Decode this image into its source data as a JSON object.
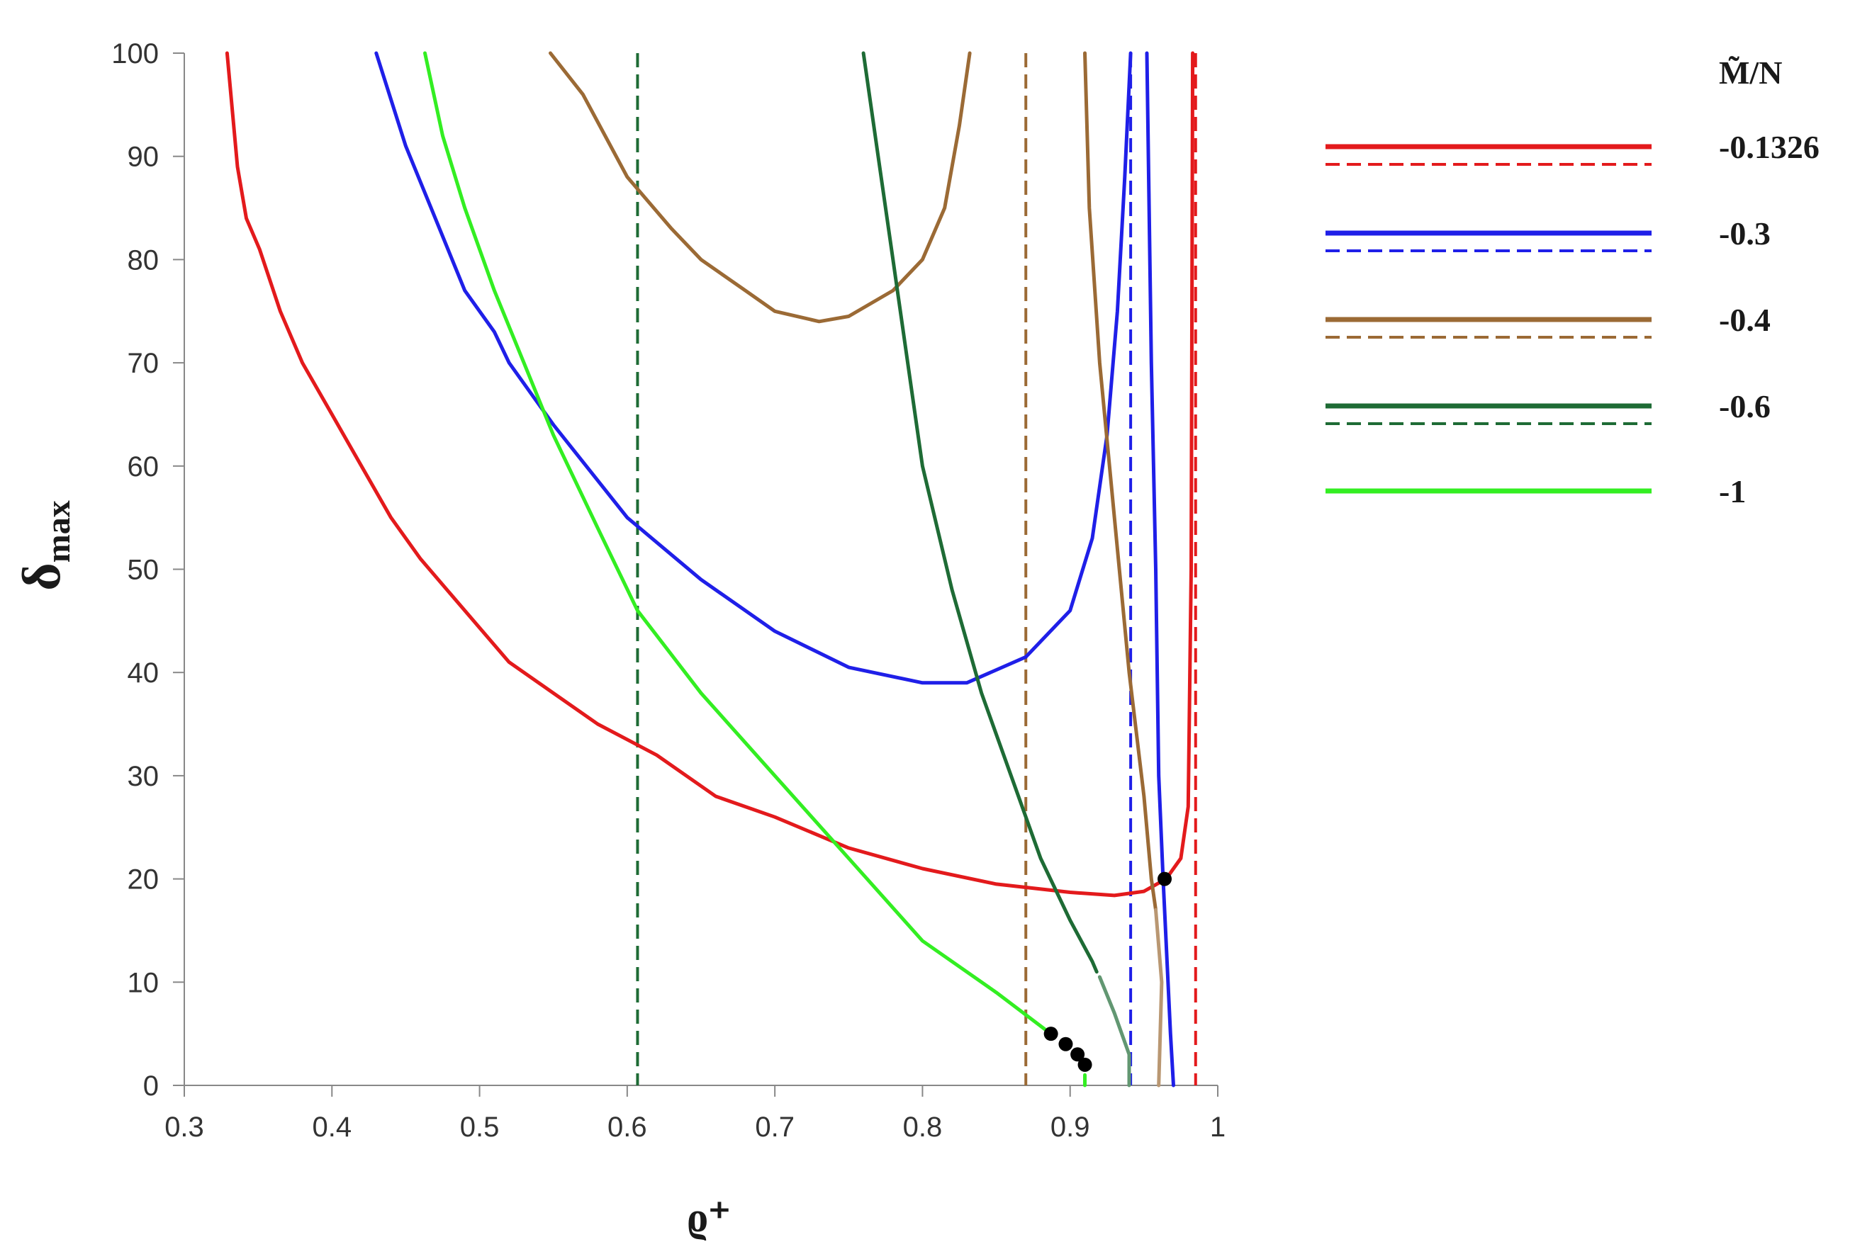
{
  "chart_data": {
    "type": "line",
    "xlabel": "ϱ⁺",
    "ylabel": "δ",
    "ylabel_sub": "max",
    "xlim": [
      0.3,
      1.0
    ],
    "ylim": [
      0,
      100
    ],
    "x_ticks": [
      "0.3",
      "0.4",
      "0.5",
      "0.6",
      "0.7",
      "0.8",
      "0.9",
      "1"
    ],
    "y_ticks": [
      "0",
      "10",
      "20",
      "30",
      "40",
      "50",
      "60",
      "70",
      "80",
      "90",
      "100"
    ],
    "legend_title": "M̃/N",
    "legend_placement": "right",
    "series": [
      {
        "name": "-0.1326",
        "color": "#e31a1c",
        "points": [
          [
            0.329,
            100
          ],
          [
            0.336,
            89
          ],
          [
            0.342,
            84
          ],
          [
            0.351,
            81
          ],
          [
            0.365,
            75
          ],
          [
            0.38,
            70
          ],
          [
            0.392,
            67
          ],
          [
            0.4,
            65
          ],
          [
            0.42,
            60
          ],
          [
            0.44,
            55
          ],
          [
            0.46,
            51
          ],
          [
            0.49,
            46
          ],
          [
            0.52,
            41
          ],
          [
            0.55,
            38
          ],
          [
            0.58,
            35
          ],
          [
            0.62,
            32
          ],
          [
            0.66,
            28
          ],
          [
            0.7,
            26
          ],
          [
            0.75,
            23
          ],
          [
            0.8,
            21
          ],
          [
            0.85,
            19.5
          ],
          [
            0.9,
            18.7
          ],
          [
            0.93,
            18.4
          ],
          [
            0.95,
            18.8
          ],
          [
            0.965,
            20
          ],
          [
            0.975,
            22
          ],
          [
            0.98,
            27
          ],
          [
            0.982,
            50
          ],
          [
            0.983,
            100
          ]
        ],
        "asymptote": 0.985
      },
      {
        "name": "-0.3",
        "color": "#1f1fe8",
        "points": [
          [
            0.43,
            100
          ],
          [
            0.45,
            91
          ],
          [
            0.47,
            84
          ],
          [
            0.49,
            77
          ],
          [
            0.5,
            75
          ],
          [
            0.51,
            73
          ],
          [
            0.52,
            70
          ],
          [
            0.55,
            64
          ],
          [
            0.6,
            55
          ],
          [
            0.65,
            49
          ],
          [
            0.7,
            44
          ],
          [
            0.75,
            40.5
          ],
          [
            0.8,
            39
          ],
          [
            0.83,
            39
          ],
          [
            0.87,
            41.5
          ],
          [
            0.9,
            46
          ],
          [
            0.915,
            53
          ],
          [
            0.925,
            63
          ],
          [
            0.932,
            75
          ],
          [
            0.937,
            88
          ],
          [
            0.941,
            100
          ]
        ],
        "points_secondary": [
          [
            0.952,
            100
          ],
          [
            0.955,
            70
          ],
          [
            0.958,
            50
          ],
          [
            0.96,
            30
          ],
          [
            0.963,
            20
          ],
          [
            0.968,
            5
          ],
          [
            0.97,
            0
          ]
        ],
        "asymptote": 0.941
      },
      {
        "name": "-0.4",
        "color": "#9b6a35",
        "points": [
          [
            0.548,
            100
          ],
          [
            0.57,
            96
          ],
          [
            0.6,
            88
          ],
          [
            0.63,
            83
          ],
          [
            0.65,
            80
          ],
          [
            0.68,
            77
          ],
          [
            0.7,
            75
          ],
          [
            0.73,
            74
          ],
          [
            0.75,
            74.5
          ],
          [
            0.78,
            77
          ],
          [
            0.8,
            80
          ],
          [
            0.815,
            85
          ],
          [
            0.825,
            93
          ],
          [
            0.832,
            100
          ]
        ],
        "points_secondary": [
          [
            0.91,
            100
          ],
          [
            0.913,
            85
          ],
          [
            0.92,
            70
          ],
          [
            0.93,
            55
          ],
          [
            0.94,
            40
          ],
          [
            0.95,
            28
          ],
          [
            0.955,
            20
          ],
          [
            0.958,
            17
          ]
        ],
        "points_faded": [
          [
            0.958,
            17
          ],
          [
            0.962,
            10
          ],
          [
            0.96,
            0
          ]
        ],
        "asymptote": 0.87
      },
      {
        "name": "-0.6",
        "color": "#1e6b35",
        "points": [
          [
            0.76,
            100
          ],
          [
            0.77,
            90
          ],
          [
            0.78,
            80
          ],
          [
            0.79,
            70
          ],
          [
            0.8,
            60
          ],
          [
            0.82,
            48
          ],
          [
            0.84,
            38
          ],
          [
            0.86,
            30
          ],
          [
            0.88,
            22
          ],
          [
            0.9,
            16
          ],
          [
            0.915,
            12
          ],
          [
            0.918,
            11
          ]
        ],
        "points_faded": [
          [
            0.92,
            10.5
          ],
          [
            0.93,
            7
          ],
          [
            0.94,
            3
          ],
          [
            0.94,
            0
          ]
        ],
        "asymptote": 0.607
      },
      {
        "name": "-1",
        "color": "#33ee22",
        "points": [
          [
            0.463,
            100
          ],
          [
            0.475,
            92
          ],
          [
            0.49,
            85
          ],
          [
            0.51,
            77
          ],
          [
            0.53,
            70
          ],
          [
            0.55,
            63
          ],
          [
            0.58,
            54
          ],
          [
            0.607,
            46
          ],
          [
            0.65,
            38
          ],
          [
            0.7,
            30
          ],
          [
            0.75,
            22
          ],
          [
            0.8,
            14
          ],
          [
            0.85,
            9
          ],
          [
            0.887,
            5
          ]
        ],
        "points_tail": [
          [
            0.91,
            1
          ],
          [
            0.91,
            0
          ]
        ]
      }
    ],
    "markers": [
      [
        0.964,
        20
      ],
      [
        0.887,
        5
      ],
      [
        0.897,
        4
      ],
      [
        0.905,
        3
      ],
      [
        0.91,
        2
      ]
    ]
  }
}
